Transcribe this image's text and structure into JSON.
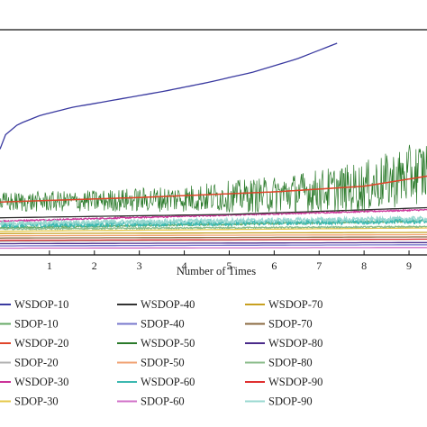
{
  "chart_data": {
    "type": "line",
    "xlabel": "Number of Times",
    "xlim": [
      -0.1,
      9.4
    ],
    "ylim": [
      0,
      1
    ],
    "x_ticks": [
      "1",
      "2",
      "3",
      "4",
      "5",
      "6",
      "7",
      "8",
      "9"
    ],
    "grid": false,
    "legend_placement": "bottom",
    "series": [
      {
        "name": "WSDOP-10",
        "color": "#3a3aa0",
        "values": [
          [
            -0.1,
            0.47
          ],
          [
            0.0,
            0.53
          ],
          [
            0.3,
            0.58
          ],
          [
            0.8,
            0.62
          ],
          [
            1.5,
            0.655
          ],
          [
            2.5,
            0.69
          ],
          [
            3.5,
            0.725
          ],
          [
            4.5,
            0.765
          ],
          [
            5.5,
            0.81
          ],
          [
            6.5,
            0.87
          ],
          [
            7.4,
            0.94
          ]
        ]
      },
      {
        "name": "SDOP-10",
        "color": "#66aa66",
        "values": [
          [
            -0.1,
            0.12
          ],
          [
            9.4,
            0.15
          ]
        ]
      },
      {
        "name": "WSDOP-20",
        "color": "#e0452a",
        "values": [
          [
            -0.1,
            0.235
          ],
          [
            3.0,
            0.255
          ],
          [
            6.0,
            0.28
          ],
          [
            8.0,
            0.305
          ],
          [
            9.4,
            0.35
          ]
        ]
      },
      {
        "name": "SDOP-20",
        "color": "#b0b0b0",
        "values": [
          [
            -0.1,
            0.06
          ],
          [
            9.4,
            0.07
          ]
        ]
      },
      {
        "name": "WSDOP-30",
        "color": "#cc3399",
        "values": [
          [
            -0.1,
            0.15
          ],
          [
            9.4,
            0.2
          ]
        ]
      },
      {
        "name": "SDOP-30",
        "color": "#e6c84a",
        "values": [
          [
            -0.1,
            0.105
          ],
          [
            9.4,
            0.12
          ]
        ]
      },
      {
        "name": "WSDOP-40",
        "color": "#333333",
        "values": [
          [
            -0.1,
            0.165
          ],
          [
            5.0,
            0.18
          ],
          [
            9.4,
            0.21
          ]
        ]
      },
      {
        "name": "SDOP-40",
        "color": "#7777cc",
        "values": [
          [
            -0.1,
            0.04
          ],
          [
            9.4,
            0.045
          ]
        ]
      },
      {
        "name": "WSDOP-50",
        "color": "#2a7a2a",
        "values": [
          [
            -0.1,
            0.23
          ],
          [
            2.0,
            0.235
          ],
          [
            4.0,
            0.245
          ],
          [
            6.0,
            0.26
          ],
          [
            8.0,
            0.29
          ],
          [
            9.4,
            0.36
          ]
        ]
      },
      {
        "name": "SDOP-50",
        "color": "#f0a070",
        "values": [
          [
            -0.1,
            0.085
          ],
          [
            9.4,
            0.09
          ]
        ]
      },
      {
        "name": "WSDOP-60",
        "color": "#3cb8b0",
        "values": [
          [
            -0.1,
            0.13
          ],
          [
            9.4,
            0.15
          ]
        ]
      },
      {
        "name": "SDOP-60",
        "color": "#d070c8",
        "values": [
          [
            -0.1,
            0.03
          ],
          [
            9.4,
            0.033
          ]
        ]
      },
      {
        "name": "WSDOP-70",
        "color": "#c8a020",
        "values": [
          [
            -0.1,
            0.095
          ],
          [
            9.4,
            0.1
          ]
        ]
      },
      {
        "name": "SDOP-70",
        "color": "#8a6a40",
        "values": [
          [
            -0.1,
            0.075
          ],
          [
            9.4,
            0.08
          ]
        ]
      },
      {
        "name": "WSDOP-80",
        "color": "#4a2a8a",
        "values": [
          [
            -0.1,
            0.05
          ],
          [
            9.4,
            0.055
          ]
        ]
      },
      {
        "name": "SDOP-80",
        "color": "#88bb88",
        "values": [
          [
            -0.1,
            0.115
          ],
          [
            9.4,
            0.125
          ]
        ]
      },
      {
        "name": "WSDOP-90",
        "color": "#e03030",
        "values": [
          [
            -0.1,
            0.065
          ],
          [
            9.4,
            0.07
          ]
        ]
      },
      {
        "name": "SDOP-90",
        "color": "#99d8d0",
        "values": [
          [
            -0.1,
            0.14
          ],
          [
            9.4,
            0.16
          ]
        ]
      }
    ]
  }
}
